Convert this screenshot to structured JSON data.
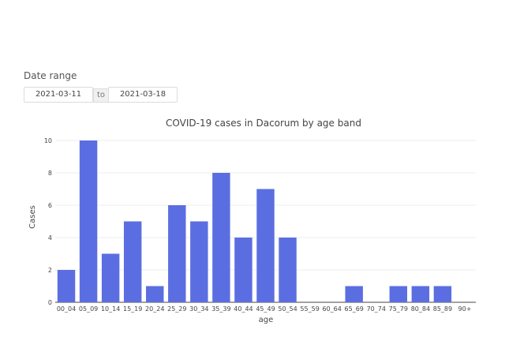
{
  "date_range": {
    "label": "Date range",
    "start": "2021-03-11",
    "separator": "to",
    "end": "2021-03-18"
  },
  "chart_data": {
    "type": "bar",
    "title": "COVID-19 cases in Dacorum by age band",
    "xlabel": "age",
    "ylabel": "Cases",
    "categories": [
      "00_04",
      "05_09",
      "10_14",
      "15_19",
      "20_24",
      "25_29",
      "30_34",
      "35_39",
      "40_44",
      "45_49",
      "50_54",
      "55_59",
      "60_64",
      "65_69",
      "70_74",
      "75_79",
      "80_84",
      "85_89",
      "90+"
    ],
    "values": [
      2,
      10,
      3,
      5,
      1,
      6,
      5,
      8,
      4,
      7,
      4,
      0,
      0,
      1,
      0,
      1,
      1,
      1,
      0
    ],
    "ylim": [
      0,
      10
    ],
    "yticks": [
      0,
      2,
      4,
      6,
      8,
      10
    ],
    "grid": true,
    "bar_color": "#5b6ee1"
  }
}
